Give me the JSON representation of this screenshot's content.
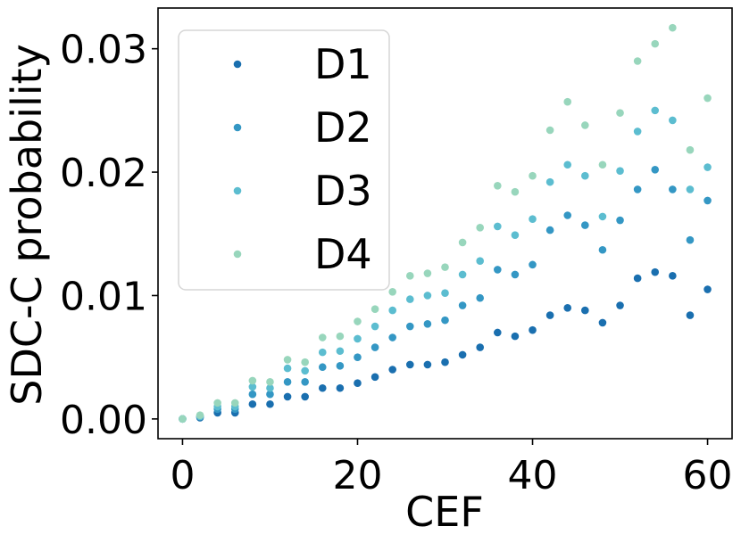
{
  "chart_data": {
    "type": "scatter",
    "title": "",
    "xlabel": "CEF",
    "ylabel": "SDC-C probability",
    "xlim": [
      -2.8,
      62.8
    ],
    "ylim": [
      -0.0016,
      0.0333
    ],
    "xticks": [
      0,
      20,
      40,
      60
    ],
    "xtick_labels": [
      "0",
      "20",
      "40",
      "60"
    ],
    "yticks": [
      0,
      0.01,
      0.02,
      0.03
    ],
    "ytick_labels": [
      "0.00",
      "0.01",
      "0.02",
      "0.03"
    ],
    "grid": false,
    "legend_position": "top-left",
    "x": [
      0,
      2,
      4,
      6,
      8,
      10,
      12,
      14,
      16,
      18,
      20,
      22,
      24,
      26,
      28,
      30,
      32,
      34,
      36,
      38,
      40,
      42,
      44,
      46,
      48,
      50,
      52,
      54,
      56,
      58,
      60
    ],
    "series": [
      {
        "name": "D1",
        "color": "#1a6faf",
        "values": [
          0.0,
          0.0001,
          0.0005,
          0.0005,
          0.0012,
          0.0012,
          0.0018,
          0.0018,
          0.0025,
          0.0025,
          0.0029,
          0.0034,
          0.004,
          0.0044,
          0.0044,
          0.0046,
          0.0052,
          0.0058,
          0.007,
          0.0067,
          0.0072,
          0.0084,
          0.009,
          0.0088,
          0.0078,
          0.0092,
          0.0114,
          0.0119,
          0.0116,
          0.0084,
          0.0105
        ]
      },
      {
        "name": "D2",
        "color": "#3497c4",
        "values": [
          0.0,
          0.0002,
          0.0008,
          0.0008,
          0.002,
          0.002,
          0.003,
          0.003,
          0.0042,
          0.0043,
          0.005,
          0.0058,
          0.0066,
          0.0075,
          0.0077,
          0.008,
          0.0092,
          0.0098,
          0.0121,
          0.0117,
          0.0125,
          0.0153,
          0.0165,
          0.0157,
          0.0137,
          0.0161,
          0.0186,
          0.0202,
          0.0186,
          0.0145,
          0.0177
        ]
      },
      {
        "name": "D3",
        "color": "#5cbdd0",
        "values": [
          0.0,
          0.0002,
          0.001,
          0.001,
          0.0026,
          0.0025,
          0.0041,
          0.0039,
          0.0054,
          0.0055,
          0.0065,
          0.0075,
          0.0088,
          0.0097,
          0.01,
          0.0102,
          0.0117,
          0.0128,
          0.0156,
          0.0149,
          0.0162,
          0.0192,
          0.0206,
          0.0197,
          0.0164,
          0.0201,
          0.0233,
          0.025,
          0.0242,
          0.0186,
          0.0204
        ]
      },
      {
        "name": "D4",
        "color": "#98d6bc",
        "values": [
          0.0,
          0.0003,
          0.0013,
          0.0013,
          0.0031,
          0.003,
          0.0048,
          0.0046,
          0.0066,
          0.0067,
          0.0079,
          0.0089,
          0.0103,
          0.0116,
          0.0118,
          0.0123,
          0.0143,
          0.0155,
          0.0189,
          0.0184,
          0.0197,
          0.0234,
          0.0257,
          0.0238,
          0.0206,
          0.0248,
          0.029,
          0.0304,
          0.0317,
          0.0218,
          0.026
        ]
      }
    ]
  }
}
